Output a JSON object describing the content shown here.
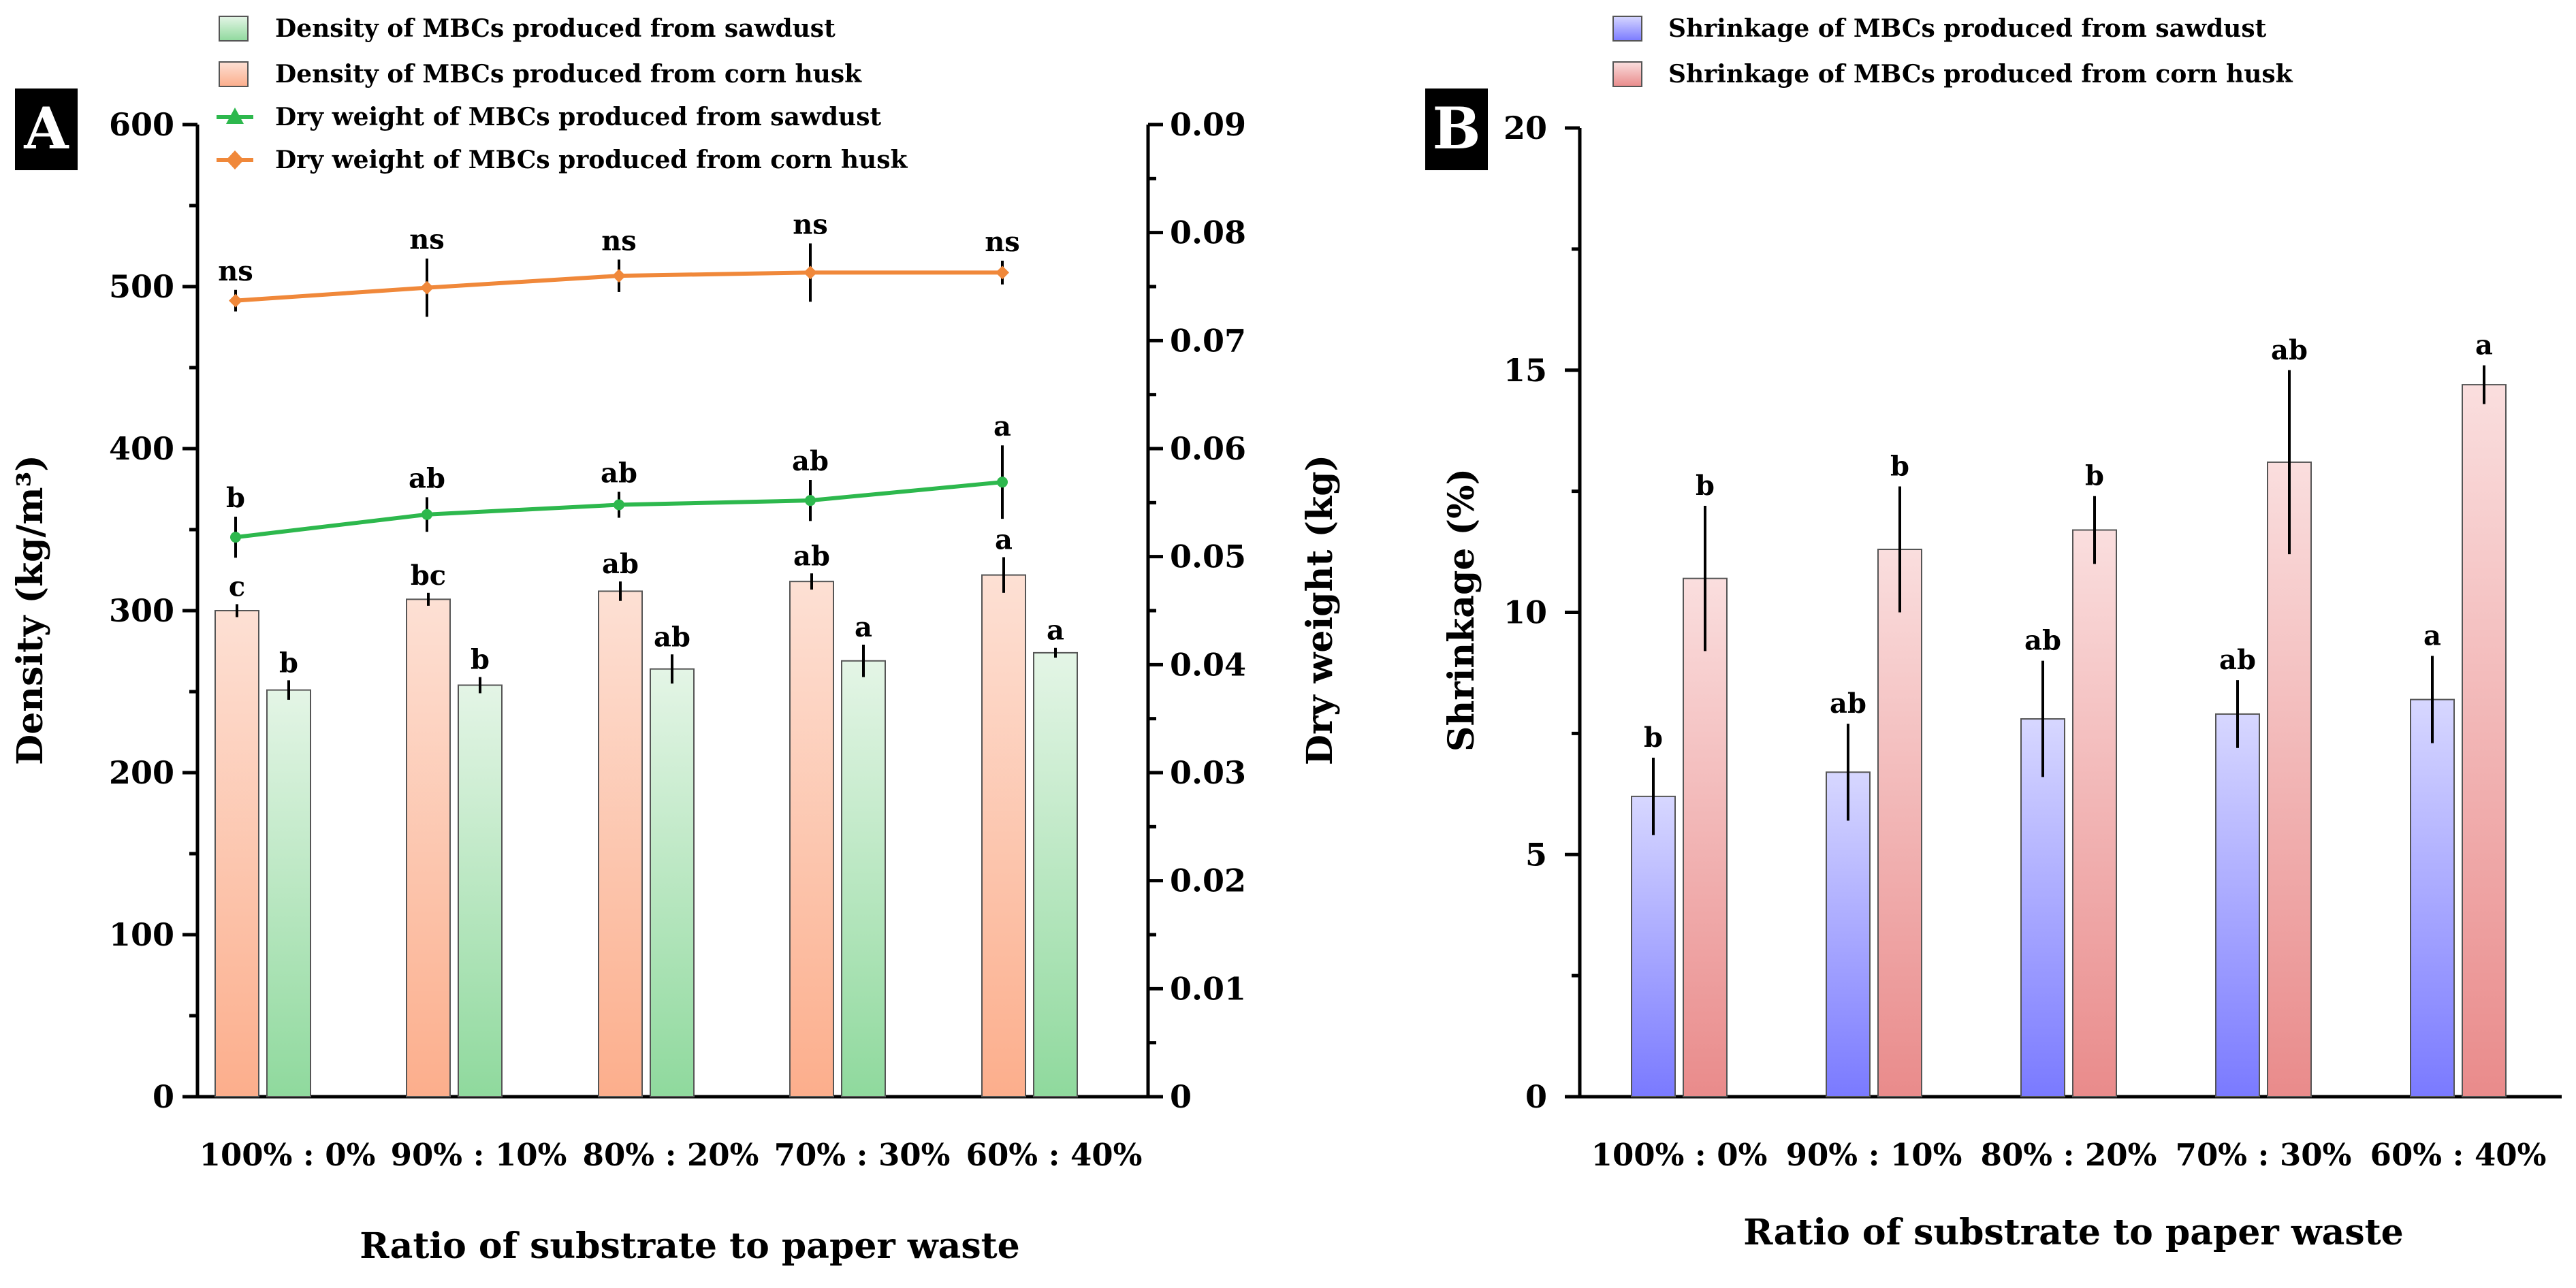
{
  "colors": {
    "sawdust_green": "#2db84d",
    "cornhusk_orange": "#f0883a",
    "sawdust_blue": "#6e6eff",
    "cornhusk_red": "#e88080"
  },
  "chart_data": [
    {
      "panel": "A",
      "type": "bar",
      "categories": [
        "100% : 0%",
        "90% : 10%",
        "80% : 20%",
        "70% : 30%",
        "60% : 40%"
      ],
      "xlabel": "Ratio of substrate to paper waste",
      "ylabel": "Density (kg/m³)",
      "ylim": [
        0,
        600
      ],
      "yticks": [
        "0",
        "100",
        "200",
        "300",
        "400",
        "500",
        "600"
      ],
      "y2label": "Dry weight (kg)",
      "y2lim": [
        0,
        0.09
      ],
      "y2ticks": [
        "0",
        "0.01",
        "0.02",
        "0.03",
        "0.04",
        "0.05",
        "0.06",
        "0.07",
        "0.08",
        "0.09"
      ],
      "series": [
        {
          "name": "Density of MBCs produced from corn husk",
          "kind": "bar",
          "values": [
            300,
            307,
            312,
            318,
            322
          ],
          "errors": [
            4,
            4,
            6,
            5,
            11
          ],
          "sig": [
            "c",
            "bc",
            "ab",
            "ab",
            "a"
          ]
        },
        {
          "name": "Density of MBCs produced from sawdust",
          "kind": "bar",
          "values": [
            251,
            254,
            264,
            269,
            274
          ],
          "errors": [
            6,
            5,
            9,
            10,
            3
          ],
          "sig": [
            "b",
            "b",
            "ab",
            "a",
            "a"
          ]
        },
        {
          "name": "Dry weight of MBCs produced from sawdust",
          "kind": "line",
          "axis": "y2",
          "values": [
            0.0518,
            0.0539,
            0.0548,
            0.0552,
            0.0569
          ],
          "errors": [
            0.0019,
            0.0016,
            0.0012,
            0.0019,
            0.0034
          ],
          "sig": [
            "b",
            "ab",
            "ab",
            "ab",
            "a"
          ]
        },
        {
          "name": "Dry weight of MBCs produced from corn husk",
          "kind": "line",
          "axis": "y2",
          "values": [
            0.0737,
            0.0749,
            0.076,
            0.0763,
            0.0763
          ],
          "errors": [
            0.001,
            0.0027,
            0.0015,
            0.0027,
            0.0011
          ],
          "sig": [
            "ns",
            "ns",
            "ns",
            "ns",
            "ns"
          ]
        }
      ],
      "legend": [
        "Density of MBCs produced from sawdust",
        "Density of MBCs produced from corn husk",
        "Dry weight of MBCs produced from sawdust",
        "Dry weight of MBCs produced from corn husk"
      ]
    },
    {
      "panel": "B",
      "type": "bar",
      "categories": [
        "100% : 0%",
        "90% : 10%",
        "80% : 20%",
        "70% : 30%",
        "60% : 40%"
      ],
      "xlabel": "Ratio of substrate to paper waste",
      "ylabel": "Shrinkage (%)",
      "ylim": [
        0,
        20
      ],
      "yticks": [
        "0",
        "5",
        "10",
        "15",
        "20"
      ],
      "series": [
        {
          "name": "Shrinkage of MBCs produced from sawdust",
          "kind": "bar",
          "values": [
            6.2,
            6.7,
            7.8,
            7.9,
            8.2
          ],
          "errors": [
            0.8,
            1.0,
            1.2,
            0.7,
            0.9
          ],
          "sig": [
            "b",
            "ab",
            "ab",
            "ab",
            "a"
          ]
        },
        {
          "name": "Shrinkage of MBCs produced from corn husk",
          "kind": "bar",
          "values": [
            10.7,
            11.3,
            11.7,
            13.1,
            14.7
          ],
          "errors": [
            1.5,
            1.3,
            0.7,
            1.9,
            0.4
          ],
          "sig": [
            "b",
            "b",
            "b",
            "ab",
            "a"
          ]
        }
      ],
      "legend": [
        "Shrinkage of MBCs produced from sawdust",
        "Shrinkage of MBCs produced from corn husk"
      ]
    }
  ]
}
